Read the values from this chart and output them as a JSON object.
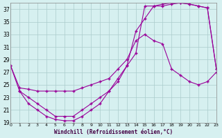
{
  "xlabel": "Windchill (Refroidissement éolien,°C)",
  "bg_color": "#d6f0f0",
  "line_color": "#990099",
  "grid_color": "#aacccc",
  "xmin": 0,
  "xmax": 23,
  "ymin": 19,
  "ymax": 38,
  "yticks": [
    19,
    21,
    23,
    25,
    27,
    29,
    31,
    33,
    35,
    37
  ],
  "series1_x": [
    0,
    1,
    2,
    3,
    4,
    5,
    6,
    7,
    8,
    9,
    10,
    11,
    12,
    13,
    14,
    15,
    16,
    17,
    18,
    19,
    20,
    21,
    22,
    23
  ],
  "series1_y": [
    28,
    24,
    22,
    21,
    20,
    19.5,
    19.3,
    19.3,
    20,
    21,
    22,
    24,
    26,
    28,
    30,
    37.5,
    37.5,
    37.8,
    38,
    38,
    37.8,
    37.5,
    37.2,
    27.5
  ],
  "series2_x": [
    0,
    1,
    2,
    3,
    4,
    5,
    6,
    7,
    8,
    9,
    10,
    11,
    12,
    13,
    14,
    15,
    16,
    17,
    18,
    19,
    20,
    21,
    22,
    23
  ],
  "series2_y": [
    28,
    24.5,
    24.3,
    24,
    24,
    24,
    24,
    24,
    24.5,
    25,
    25.5,
    26,
    27.5,
    29,
    32,
    33,
    32,
    31.5,
    27.5,
    26.5,
    25.5,
    25,
    25.5,
    27
  ],
  "series3_x": [
    1,
    2,
    3,
    4,
    5,
    6,
    7,
    8,
    9,
    10,
    11,
    12,
    13,
    14,
    15,
    16,
    17,
    18,
    19,
    20,
    21,
    22,
    23
  ],
  "series3_y": [
    24,
    23,
    22,
    21,
    20,
    20,
    20,
    21,
    22,
    23,
    24,
    25.5,
    28,
    33.5,
    35.5,
    37.5,
    37.5,
    37.8,
    38,
    37.8,
    37.5,
    37.2,
    27.5
  ]
}
